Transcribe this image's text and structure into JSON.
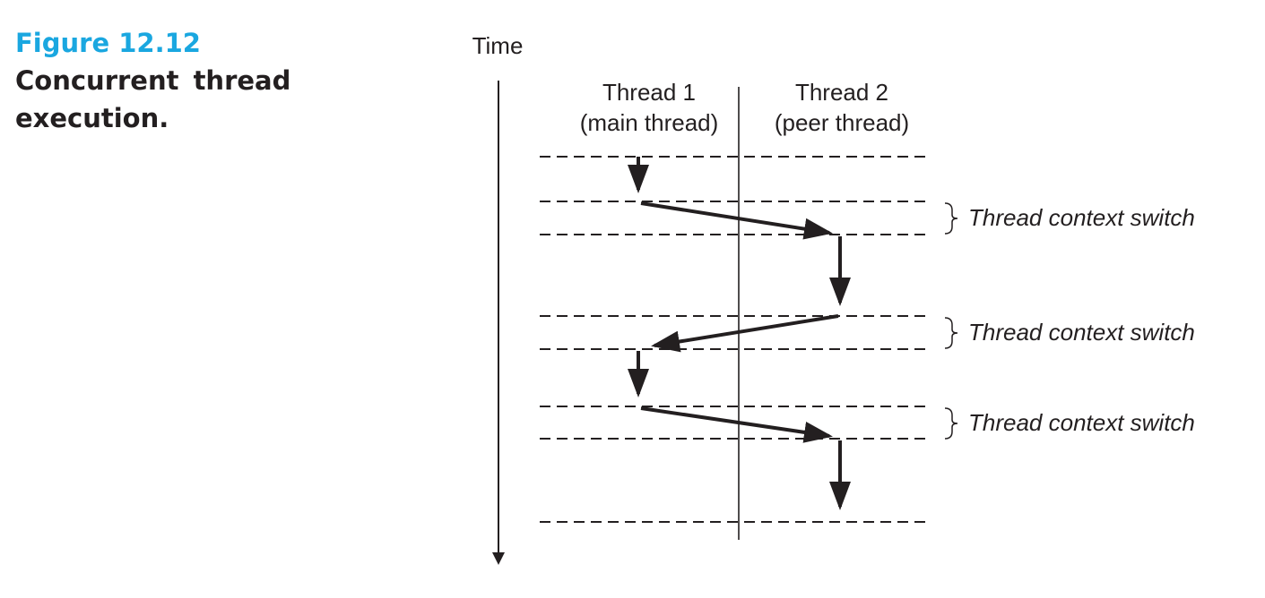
{
  "caption": {
    "figure_number": "Figure 12.12",
    "title": "Concurrent thread execution.",
    "accent_color": "#1aa7e0"
  },
  "diagram": {
    "time_label": "Time",
    "threads": [
      {
        "name": "Thread 1",
        "subtitle": "(main thread)"
      },
      {
        "name": "Thread 2",
        "subtitle": "(peer thread)"
      }
    ],
    "context_switch_labels": [
      "Thread context switch",
      "Thread context switch",
      "Thread context switch"
    ]
  }
}
